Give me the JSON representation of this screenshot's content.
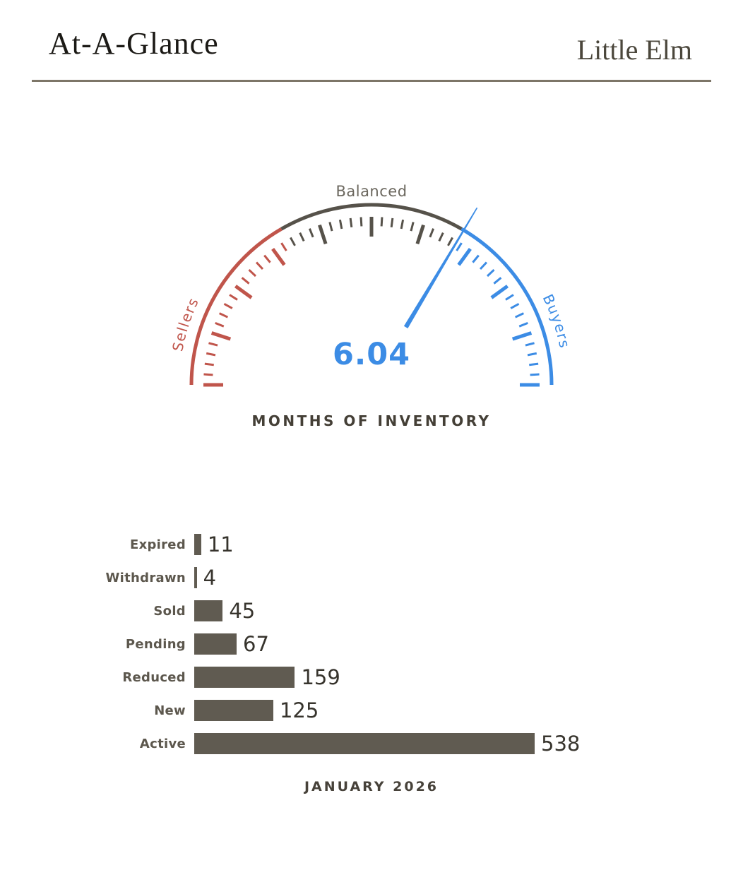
{
  "header": {
    "title": "At-A-Glance",
    "location": "Little Elm"
  },
  "colors": {
    "sellers_red": "#c0554b",
    "balanced_dark": "#56524a",
    "buyers_blue": "#3c8ce5",
    "balanced_label": "#6b675e",
    "bar_fill": "#605b51",
    "divider": "#7d7668"
  },
  "chart_data": [
    {
      "type": "gauge",
      "title": "MONTHS OF INVENTORY",
      "value": 6.04,
      "value_label": "6.04",
      "min": 0,
      "max": 9,
      "needle_color": "#3c8ce5",
      "segments": [
        {
          "label": "Sellers",
          "from": 0,
          "to": 3,
          "color": "#c0554b"
        },
        {
          "label": "Balanced",
          "from": 3,
          "to": 6,
          "color": "#56524a"
        },
        {
          "label": "Buyers",
          "from": 6,
          "to": 9,
          "color": "#3c8ce5"
        }
      ],
      "ticks": {
        "minor_step": 0.18,
        "major_every": 5
      }
    },
    {
      "type": "bar",
      "orientation": "horizontal",
      "title": "JANUARY 2026",
      "categories": [
        "Expired",
        "Withdrawn",
        "Sold",
        "Pending",
        "Reduced",
        "New",
        "Active"
      ],
      "values": [
        11,
        4,
        45,
        67,
        159,
        125,
        538
      ],
      "bar_color": "#605b51",
      "xlim": [
        0,
        538
      ]
    }
  ]
}
